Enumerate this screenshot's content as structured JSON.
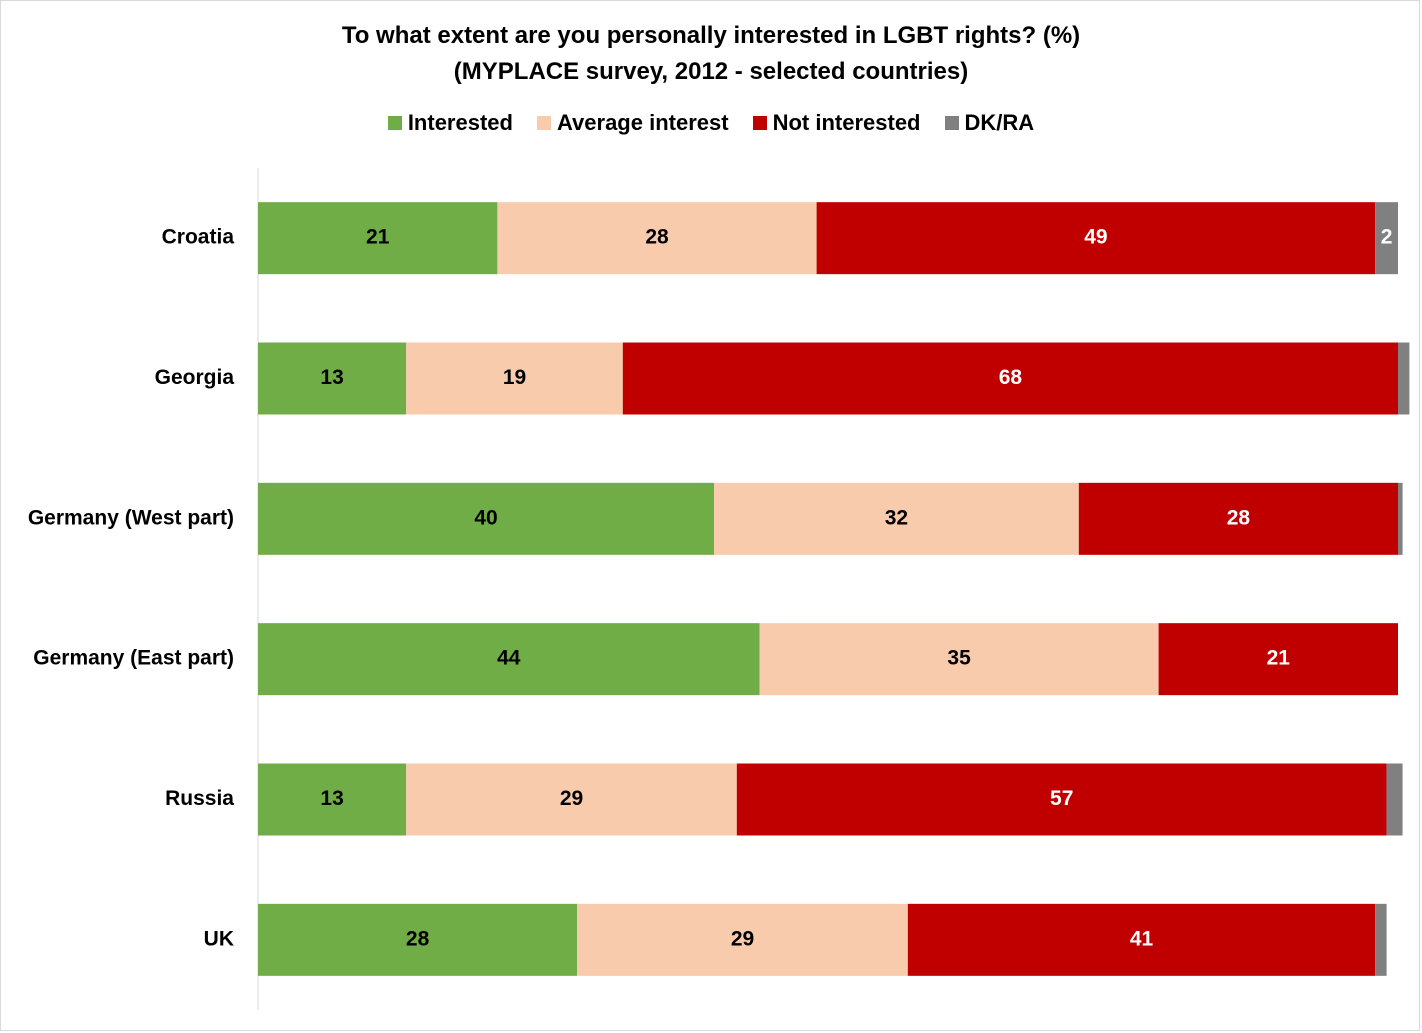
{
  "chart_data": {
    "type": "bar",
    "orientation": "horizontal",
    "stacked": true,
    "title": "To what extent are you personally interested in LGBT rights? (%)",
    "subtitle": "(MYPLACE survey, 2012 - selected countries)",
    "categories": [
      "Croatia",
      "Georgia",
      "Germany (West part)",
      "Germany (East part)",
      "Russia",
      "UK"
    ],
    "series": [
      {
        "name": "Interested",
        "color": "#70ad47",
        "label_color": "#000000",
        "values": [
          21,
          13,
          40,
          44,
          13,
          28
        ]
      },
      {
        "name": "Average interest",
        "color": "#f8cbad",
        "label_color": "#000000",
        "values": [
          28,
          19,
          32,
          35,
          29,
          29
        ]
      },
      {
        "name": "Not interested",
        "color": "#c00000",
        "label_color": "#ffffff",
        "values": [
          49,
          68,
          28,
          21,
          57,
          41
        ]
      },
      {
        "name": "DK/RA",
        "color": "#808080",
        "label_color": "#ffffff",
        "values": [
          2,
          1,
          0.4,
          0,
          1.4,
          1
        ]
      }
    ],
    "data_labels": [
      [
        "21",
        "28",
        "49",
        "2"
      ],
      [
        "13",
        "19",
        "68",
        ""
      ],
      [
        "40",
        "32",
        "28",
        ""
      ],
      [
        "44",
        "35",
        "21",
        ""
      ],
      [
        "13",
        "29",
        "57",
        ""
      ],
      [
        "28",
        "29",
        "41",
        ""
      ]
    ],
    "xlim": [
      0,
      100
    ],
    "grid": false,
    "legend_position": "top"
  }
}
